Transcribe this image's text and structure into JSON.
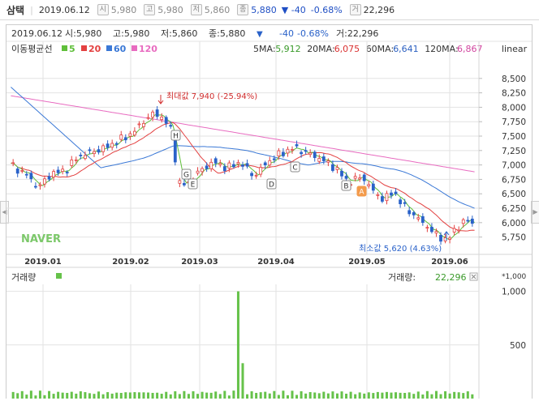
{
  "header": {
    "stock_name": "삼택",
    "date": "2019.06.12",
    "open_tag": "시",
    "open": "5,980",
    "high_tag": "고",
    "high": "5,980",
    "low_tag": "저",
    "low": "5,860",
    "close_tag": "종",
    "close": "5,880",
    "change": "▼ -40",
    "change_pct": "-0.68%",
    "volume_tag": "거",
    "volume": "22,296"
  },
  "info_line": {
    "date": "2019.06.12",
    "open": "시:5,980",
    "high": "고:5,980",
    "low": "저:5,860",
    "close": "종:5,880",
    "arrow": "▼",
    "change": "-40",
    "change_pct": "-0.68%",
    "volume": "거:22,296"
  },
  "scale_mode": "linear",
  "ma_legend": {
    "title": "이동평균선",
    "items": [
      {
        "label": "5",
        "color": "#5fbf3a"
      },
      {
        "label": "20",
        "color": "#e34040"
      },
      {
        "label": "60",
        "color": "#3a78d6"
      },
      {
        "label": "120",
        "color": "#e86bc0"
      }
    ]
  },
  "ma_values": [
    {
      "label": "5MA:",
      "value": "5,912",
      "color": "#3a9a2a"
    },
    {
      "label": "20MA:",
      "value": "6,075",
      "color": "#d93030"
    },
    {
      "label": "60MA:",
      "value": "6,641",
      "color": "#2a5fc0"
    },
    {
      "label": "120MA:",
      "value": "6,867",
      "color": "#d1459f"
    }
  ],
  "watermark": "NAVER",
  "colors": {
    "up": "#e34040",
    "down": "#2a62c9",
    "grid": "#e2e2e2",
    "volume": "#66c24a"
  },
  "chart_data": {
    "type": "candlestick",
    "x_axis_labels": [
      "2019.01",
      "2019.02",
      "2019.03",
      "2019.04",
      "2019.05",
      "2019.06"
    ],
    "price_ticks": [
      5750,
      6000,
      6250,
      6500,
      6750,
      7000,
      7250,
      7500,
      7750,
      8000,
      8250,
      8500
    ],
    "price_tick_labels": [
      "5,750",
      "6,000",
      "6,250",
      "6,500",
      "6,750",
      "7,000",
      "7,250",
      "7,500",
      "7,750",
      "8,000",
      "8,250",
      "8,500"
    ],
    "ylim": [
      5450,
      8750
    ],
    "max_annotation": "최대값 7,940 (-25.94%)",
    "min_annotation": "최소값 5,620 (4.63%)",
    "max_value": 7940,
    "min_value": 5620,
    "pattern_markers": [
      "H",
      "G",
      "E",
      "D",
      "C",
      "B",
      "A"
    ],
    "volume_panel": {
      "title": "거래량",
      "legend_label": "거래량:",
      "legend_value": "22,296",
      "unit_label": "*1,000",
      "ticks": [
        500,
        1000
      ],
      "tick_labels": [
        "500",
        "1,000"
      ],
      "ylim": [
        0,
        1050
      ]
    }
  }
}
